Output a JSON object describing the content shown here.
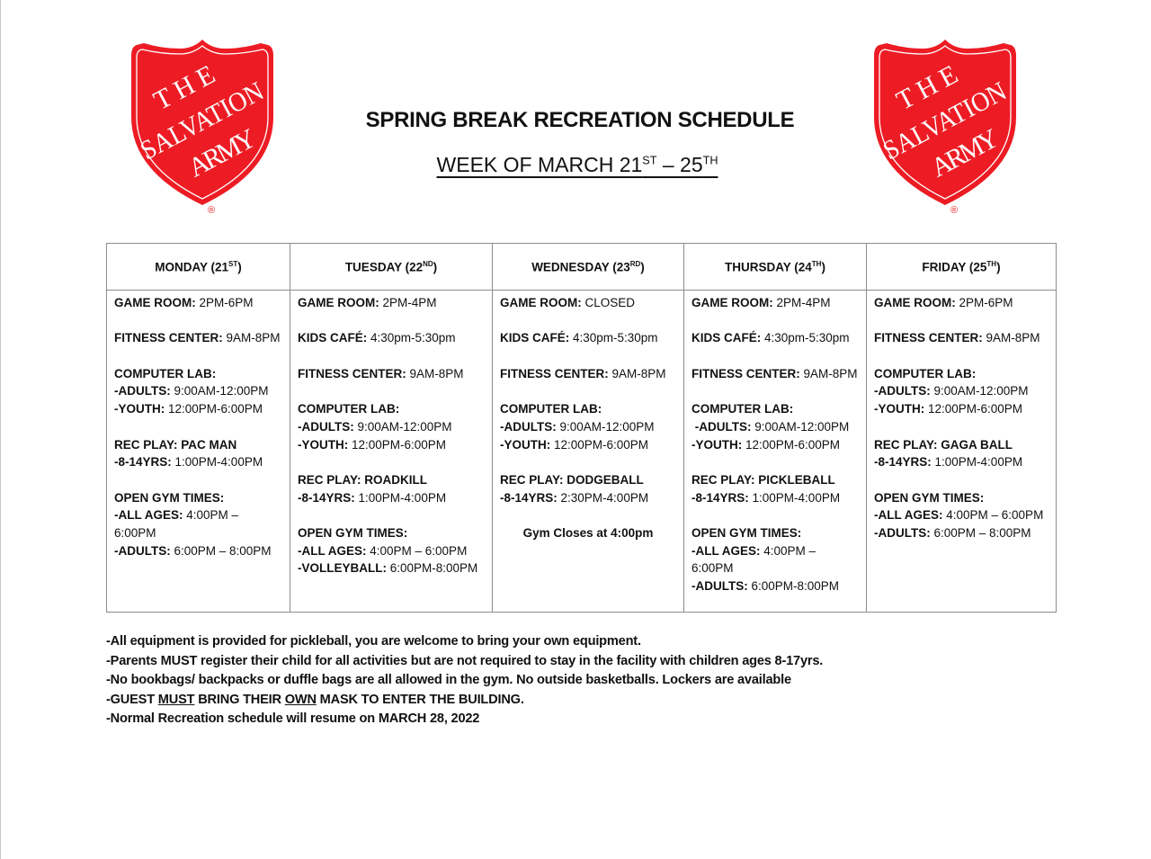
{
  "logo": {
    "text": [
      "THE",
      "SALVATION",
      "ARMY"
    ],
    "registered": "®",
    "color": "#ED1C24"
  },
  "header": {
    "title": "SPRING BREAK RECREATION SCHEDULE",
    "subtitle": {
      "prefix": "WEEK OF MARCH 21",
      "sup1": "ST",
      "mid": " – 25",
      "sup2": "TH"
    }
  },
  "days": [
    {
      "name": "MONDAY (21",
      "sup": "ST",
      "close": ")",
      "lines": [
        {
          "label": "GAME ROOM:",
          "value": " 2PM-6PM"
        },
        {},
        {
          "label": "FITNESS CENTER:",
          "value": " 9AM-8PM"
        },
        {},
        {
          "label": "COMPUTER LAB:",
          "value": ""
        },
        {
          "label": "-ADULTS:",
          "value": " 9:00AM-12:00PM"
        },
        {
          "label": "-YOUTH:",
          "value": " 12:00PM-6:00PM"
        },
        {},
        {
          "label": "REC PLAY: PAC MAN",
          "value": ""
        },
        {
          "label": "-8-14YRS:",
          "value": " 1:00PM-4:00PM"
        },
        {},
        {
          "label": "OPEN GYM TIMES:",
          "value": ""
        },
        {
          "label": "-ALL AGES:",
          "value": " 4:00PM –"
        },
        {
          "label": "",
          "value": "6:00PM"
        },
        {
          "label": "-ADULTS:",
          "value": " 6:00PM – 8:00PM"
        }
      ]
    },
    {
      "name": "TUESDAY (22",
      "sup": "ND",
      "close": ")",
      "lines": [
        {
          "label": "GAME ROOM:",
          "value": " 2PM-4PM"
        },
        {},
        {
          "label": "KIDS CAFÉ:",
          "value": " 4:30pm-5:30pm"
        },
        {},
        {
          "label": "FITNESS CENTER:",
          "value": " 9AM-8PM"
        },
        {},
        {
          "label": "COMPUTER LAB:",
          "value": ""
        },
        {
          "label": "-ADULTS:",
          "value": " 9:00AM-12:00PM"
        },
        {
          "label": "-YOUTH:",
          "value": " 12:00PM-6:00PM"
        },
        {},
        {
          "label": "REC PLAY: ROADKILL",
          "value": ""
        },
        {
          "label": "-8-14YRS:",
          "value": " 1:00PM-4:00PM"
        },
        {},
        {
          "label": "OPEN GYM TIMES:",
          "value": ""
        },
        {
          "label": "-ALL AGES:",
          "value": " 4:00PM – 6:00PM"
        },
        {
          "label": "-VOLLEYBALL:",
          "value": " 6:00PM-8:00PM"
        }
      ]
    },
    {
      "name": "WEDNESDAY (23",
      "sup": "RD",
      "close": ")",
      "lines": [
        {
          "label": "GAME ROOM:",
          "value": " CLOSED"
        },
        {},
        {
          "label": "KIDS CAFÉ:",
          "value": " 4:30pm-5:30pm"
        },
        {},
        {
          "label": "FITNESS CENTER:",
          "value": " 9AM-8PM"
        },
        {},
        {
          "label": "COMPUTER LAB:",
          "value": ""
        },
        {
          "label": "-ADULTS:",
          "value": " 9:00AM-12:00PM"
        },
        {
          "label": "-YOUTH:",
          "value": " 12:00PM-6:00PM"
        },
        {},
        {
          "label": "REC PLAY: DODGEBALL",
          "value": ""
        },
        {
          "label": "-8-14YRS:",
          "value": " 2:30PM-4:00PM"
        }
      ],
      "note": "Gym Closes at 4:00pm"
    },
    {
      "name": "THURSDAY (24",
      "sup": "TH",
      "close": ")",
      "lines": [
        {
          "label": "GAME ROOM:",
          "value": " 2PM-4PM"
        },
        {},
        {
          "label": "KIDS CAFÉ:",
          "value": " 4:30pm-5:30pm"
        },
        {},
        {
          "label": "FITNESS CENTER:",
          "value": " 9AM-8PM"
        },
        {},
        {
          "label": "COMPUTER LAB:",
          "value": ""
        },
        {
          "label": " -ADULTS:",
          "value": " 9:00AM-12:00PM"
        },
        {
          "label": "-YOUTH:",
          "value": " 12:00PM-6:00PM"
        },
        {},
        {
          "label": "REC PLAY: PICKLEBALL",
          "value": ""
        },
        {
          "label": "-8-14YRS:",
          "value": " 1:00PM-4:00PM"
        },
        {},
        {
          "label": "OPEN GYM TIMES:",
          "value": ""
        },
        {
          "label": "-ALL AGES:",
          "value": " 4:00PM –"
        },
        {
          "label": "",
          "value": "6:00PM"
        },
        {
          "label": "-ADULTS:",
          "value": " 6:00PM-8:00PM"
        }
      ]
    },
    {
      "name": "FRIDAY (25",
      "sup": "TH",
      "close": ")",
      "lines": [
        {
          "label": "GAME ROOM:",
          "value": " 2PM-6PM"
        },
        {},
        {
          "label": "FITNESS CENTER:",
          "value": " 9AM-8PM"
        },
        {},
        {
          "label": "COMPUTER LAB:",
          "value": ""
        },
        {
          "label": "-ADULTS:",
          "value": " 9:00AM-12:00PM"
        },
        {
          "label": "-YOUTH:",
          "value": " 12:00PM-6:00PM"
        },
        {},
        {
          "label": "REC PLAY: GAGA BALL",
          "value": ""
        },
        {
          "label": "-8-14YRS:",
          "value": " 1:00PM-4:00PM"
        },
        {},
        {
          "label": "OPEN GYM TIMES:",
          "value": ""
        },
        {
          "label": "-ALL AGES:",
          "value": " 4:00PM – 6:00PM"
        },
        {
          "label": "-ADULTS:",
          "value": " 6:00PM – 8:00PM"
        }
      ]
    }
  ],
  "notes": [
    [
      {
        "text": "-All equipment is provided for pickleball, you are welcome to bring your own equipment."
      }
    ],
    [
      {
        "text": "-Parents MUST register their child for all activities but are not required to stay in the facility with children ages 8-17yrs."
      }
    ],
    [
      {
        "text": "-No bookbags/ backpacks or duffle bags are all allowed in the gym. No outside basketballs. Lockers are available"
      }
    ],
    [
      {
        "text": "-GUEST "
      },
      {
        "text": "MUST",
        "underline": true
      },
      {
        "text": " BRING THEIR "
      },
      {
        "text": "OWN",
        "underline": true
      },
      {
        "text": " MASK TO ENTER THE BUILDING."
      }
    ],
    [
      {
        "text": "-Normal Recreation schedule will resume on MARCH 28, 2022"
      }
    ]
  ]
}
